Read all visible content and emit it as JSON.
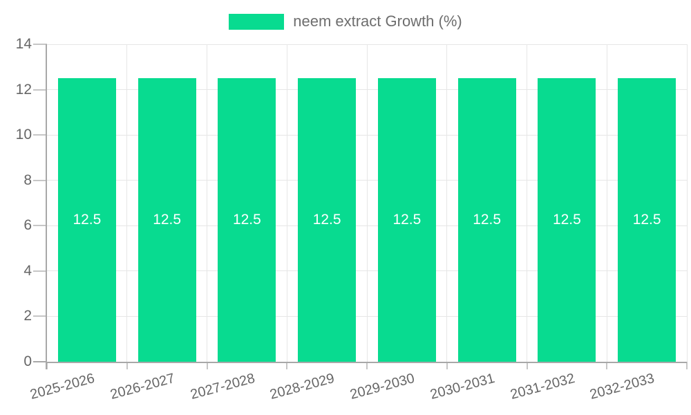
{
  "legend": {
    "label": "neem extract Growth (%)"
  },
  "chart_data": {
    "type": "bar",
    "title": "",
    "categories": [
      "2025-2026",
      "2026-2027",
      "2027-2028",
      "2028-2029",
      "2029-2030",
      "2030-2031",
      "2031-2032",
      "2032-2033"
    ],
    "series": [
      {
        "name": "neem extract Growth (%)",
        "values": [
          12.5,
          12.5,
          12.5,
          12.5,
          12.5,
          12.5,
          12.5,
          12.5
        ]
      }
    ],
    "bar_labels": [
      "12.5",
      "12.5",
      "12.5",
      "12.5",
      "12.5",
      "12.5",
      "12.5",
      "12.5"
    ],
    "xlabel": "",
    "ylabel": "",
    "ylim": [
      0,
      14
    ],
    "yticks": [
      0,
      2,
      4,
      6,
      8,
      10,
      12,
      14
    ],
    "grid": true,
    "legend_position": "top-center",
    "x_tick_rotation_deg": -15
  },
  "colors": {
    "bar": "#08db90",
    "bar_label": "#ffffff",
    "axis_line": "#a8a8a8",
    "tick_mark": "#c6c6c6",
    "grid_line": "#e6e6e6",
    "axis_label": "#666666",
    "background": "#ffffff"
  }
}
